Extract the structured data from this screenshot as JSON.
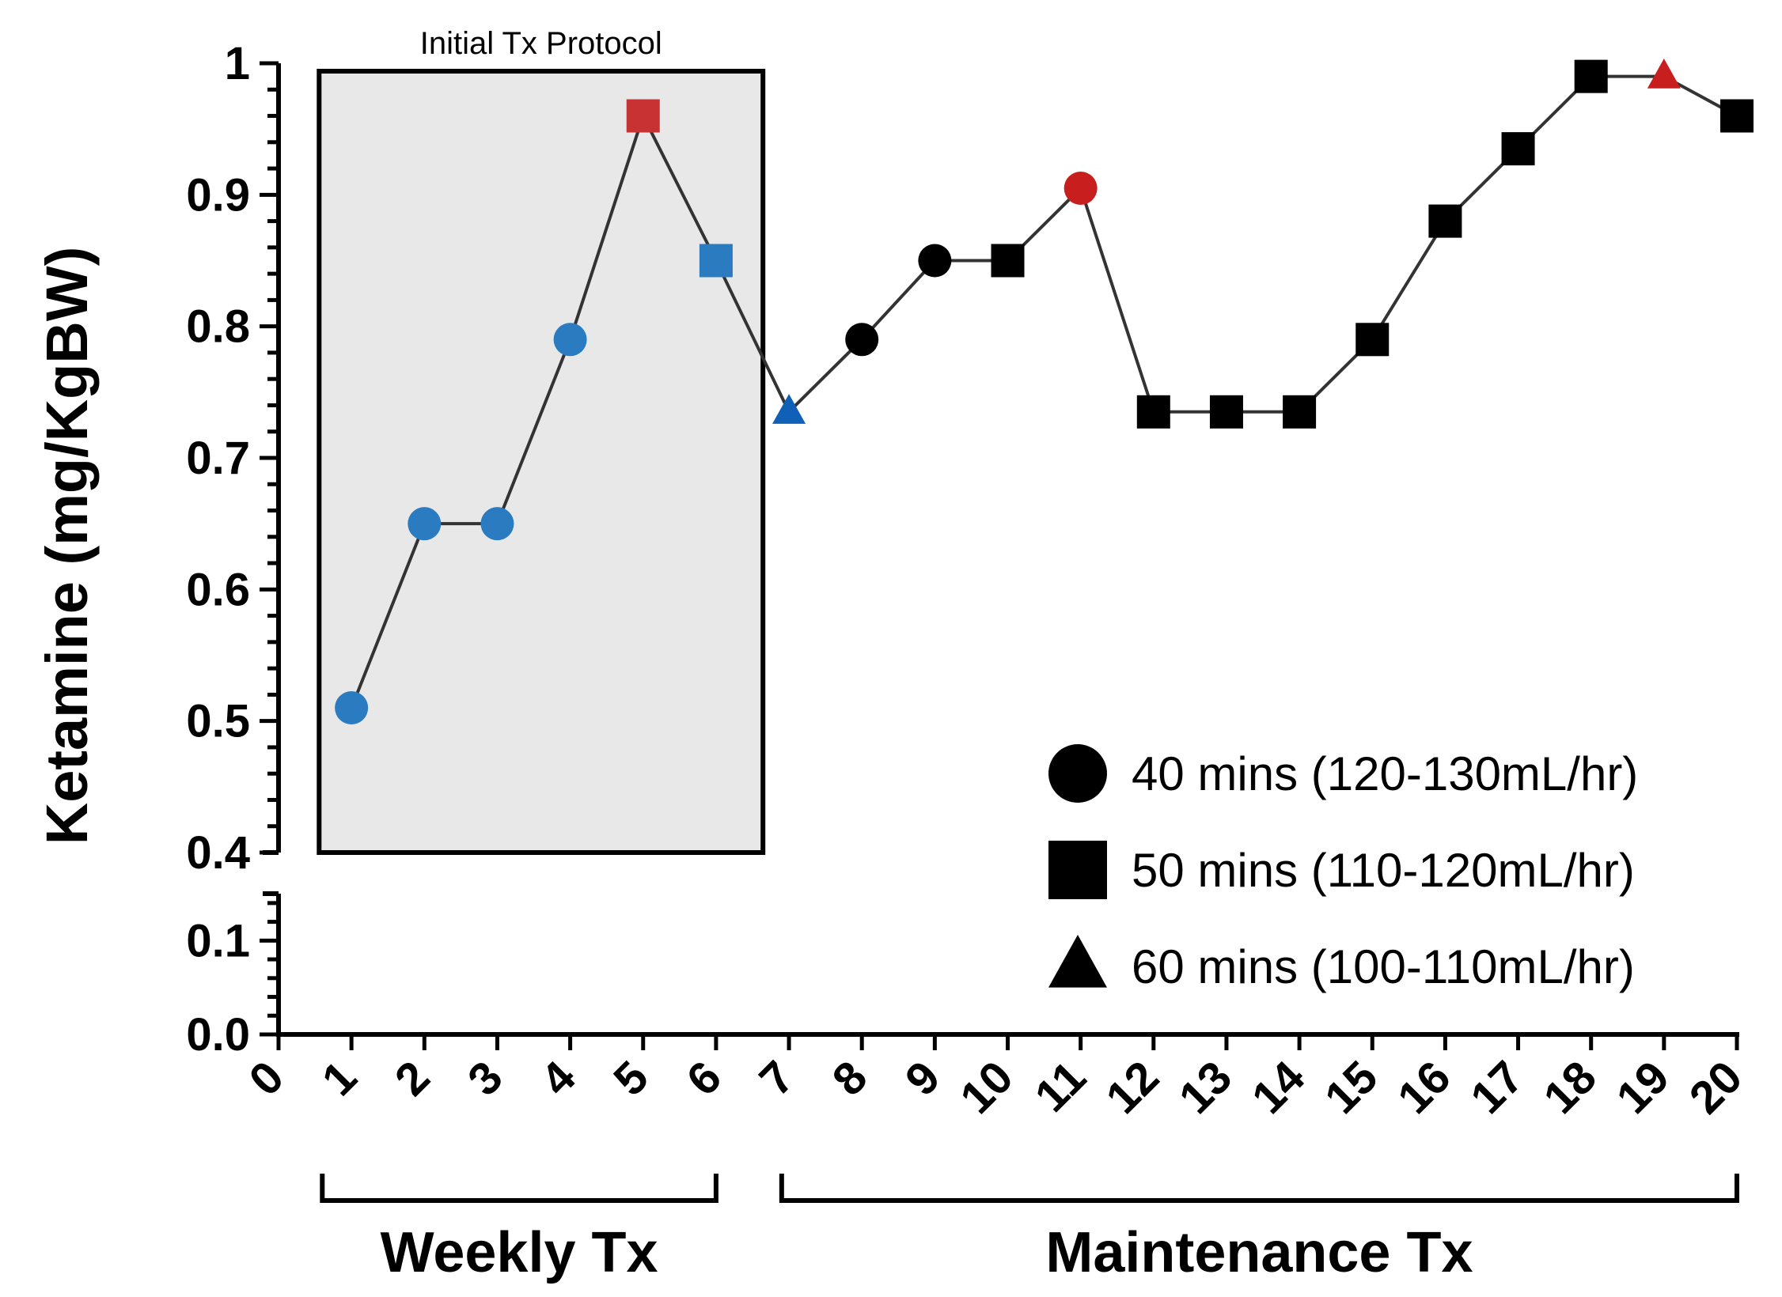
{
  "chart_data": {
    "type": "scatter",
    "ylabel": "Ketamine (mg/KgBW)",
    "xlabel": "",
    "x_ticks": [
      "0",
      "1",
      "2",
      "3",
      "4",
      "5",
      "6",
      "7",
      "8",
      "9",
      "10",
      "11",
      "12",
      "13",
      "14",
      "15",
      "16",
      "17",
      "18",
      "19",
      "20"
    ],
    "y_ticks_upper": [
      "0.4",
      "0.5",
      "0.6",
      "0.7",
      "0.8",
      "0.9",
      "1"
    ],
    "y_ticks_lower": [
      "0.0",
      "0.1"
    ],
    "ylim_upper": [
      0.4,
      1.0
    ],
    "ylim_lower": [
      0.0,
      0.15
    ],
    "xlim": [
      0,
      20
    ],
    "connected_line": true,
    "points": [
      {
        "x": 1,
        "y": 0.51,
        "shape": "circle",
        "color": "#2a7bc0"
      },
      {
        "x": 2,
        "y": 0.65,
        "shape": "circle",
        "color": "#2a7bc0"
      },
      {
        "x": 3,
        "y": 0.65,
        "shape": "circle",
        "color": "#2a7bc0"
      },
      {
        "x": 4,
        "y": 0.79,
        "shape": "circle",
        "color": "#2a7bc0"
      },
      {
        "x": 5,
        "y": 0.96,
        "shape": "square",
        "color": "#c83232"
      },
      {
        "x": 6,
        "y": 0.85,
        "shape": "square",
        "color": "#2a7bc0"
      },
      {
        "x": 7,
        "y": 0.735,
        "shape": "triangle",
        "color": "#1060b8"
      },
      {
        "x": 8,
        "y": 0.79,
        "shape": "circle",
        "color": "#000000"
      },
      {
        "x": 9,
        "y": 0.85,
        "shape": "circle",
        "color": "#000000"
      },
      {
        "x": 10,
        "y": 0.85,
        "shape": "square",
        "color": "#000000"
      },
      {
        "x": 11,
        "y": 0.905,
        "shape": "circle",
        "color": "#c81e1e"
      },
      {
        "x": 12,
        "y": 0.735,
        "shape": "square",
        "color": "#000000"
      },
      {
        "x": 13,
        "y": 0.735,
        "shape": "square",
        "color": "#000000"
      },
      {
        "x": 14,
        "y": 0.735,
        "shape": "square",
        "color": "#000000"
      },
      {
        "x": 15,
        "y": 0.79,
        "shape": "square",
        "color": "#000000"
      },
      {
        "x": 16,
        "y": 0.88,
        "shape": "square",
        "color": "#000000"
      },
      {
        "x": 17,
        "y": 0.935,
        "shape": "square",
        "color": "#000000"
      },
      {
        "x": 18,
        "y": 0.99,
        "shape": "square",
        "color": "#000000"
      },
      {
        "x": 19,
        "y": 0.99,
        "shape": "triangle",
        "color": "#c81e1e"
      },
      {
        "x": 20,
        "y": 0.96,
        "shape": "square",
        "color": "#000000"
      }
    ],
    "shaded_region": {
      "label": "Initial Tx Protocol",
      "x_from": 0.6,
      "x_to": 6.6,
      "fill": "#e8e8e8"
    },
    "brackets": [
      {
        "label": "Weekly Tx",
        "x_from": 0.6,
        "x_to": 6.0
      },
      {
        "label": "Maintenance Tx",
        "x_from": 6.9,
        "x_to": 20
      }
    ],
    "legend": [
      {
        "shape": "circle",
        "label": "40 mins (120-130mL/hr)"
      },
      {
        "shape": "square",
        "label": "50 mins (110-120mL/hr)"
      },
      {
        "shape": "triangle",
        "label": "60 mins (100-110mL/hr)"
      }
    ],
    "legend_position": "bottom-right",
    "grid": false
  }
}
